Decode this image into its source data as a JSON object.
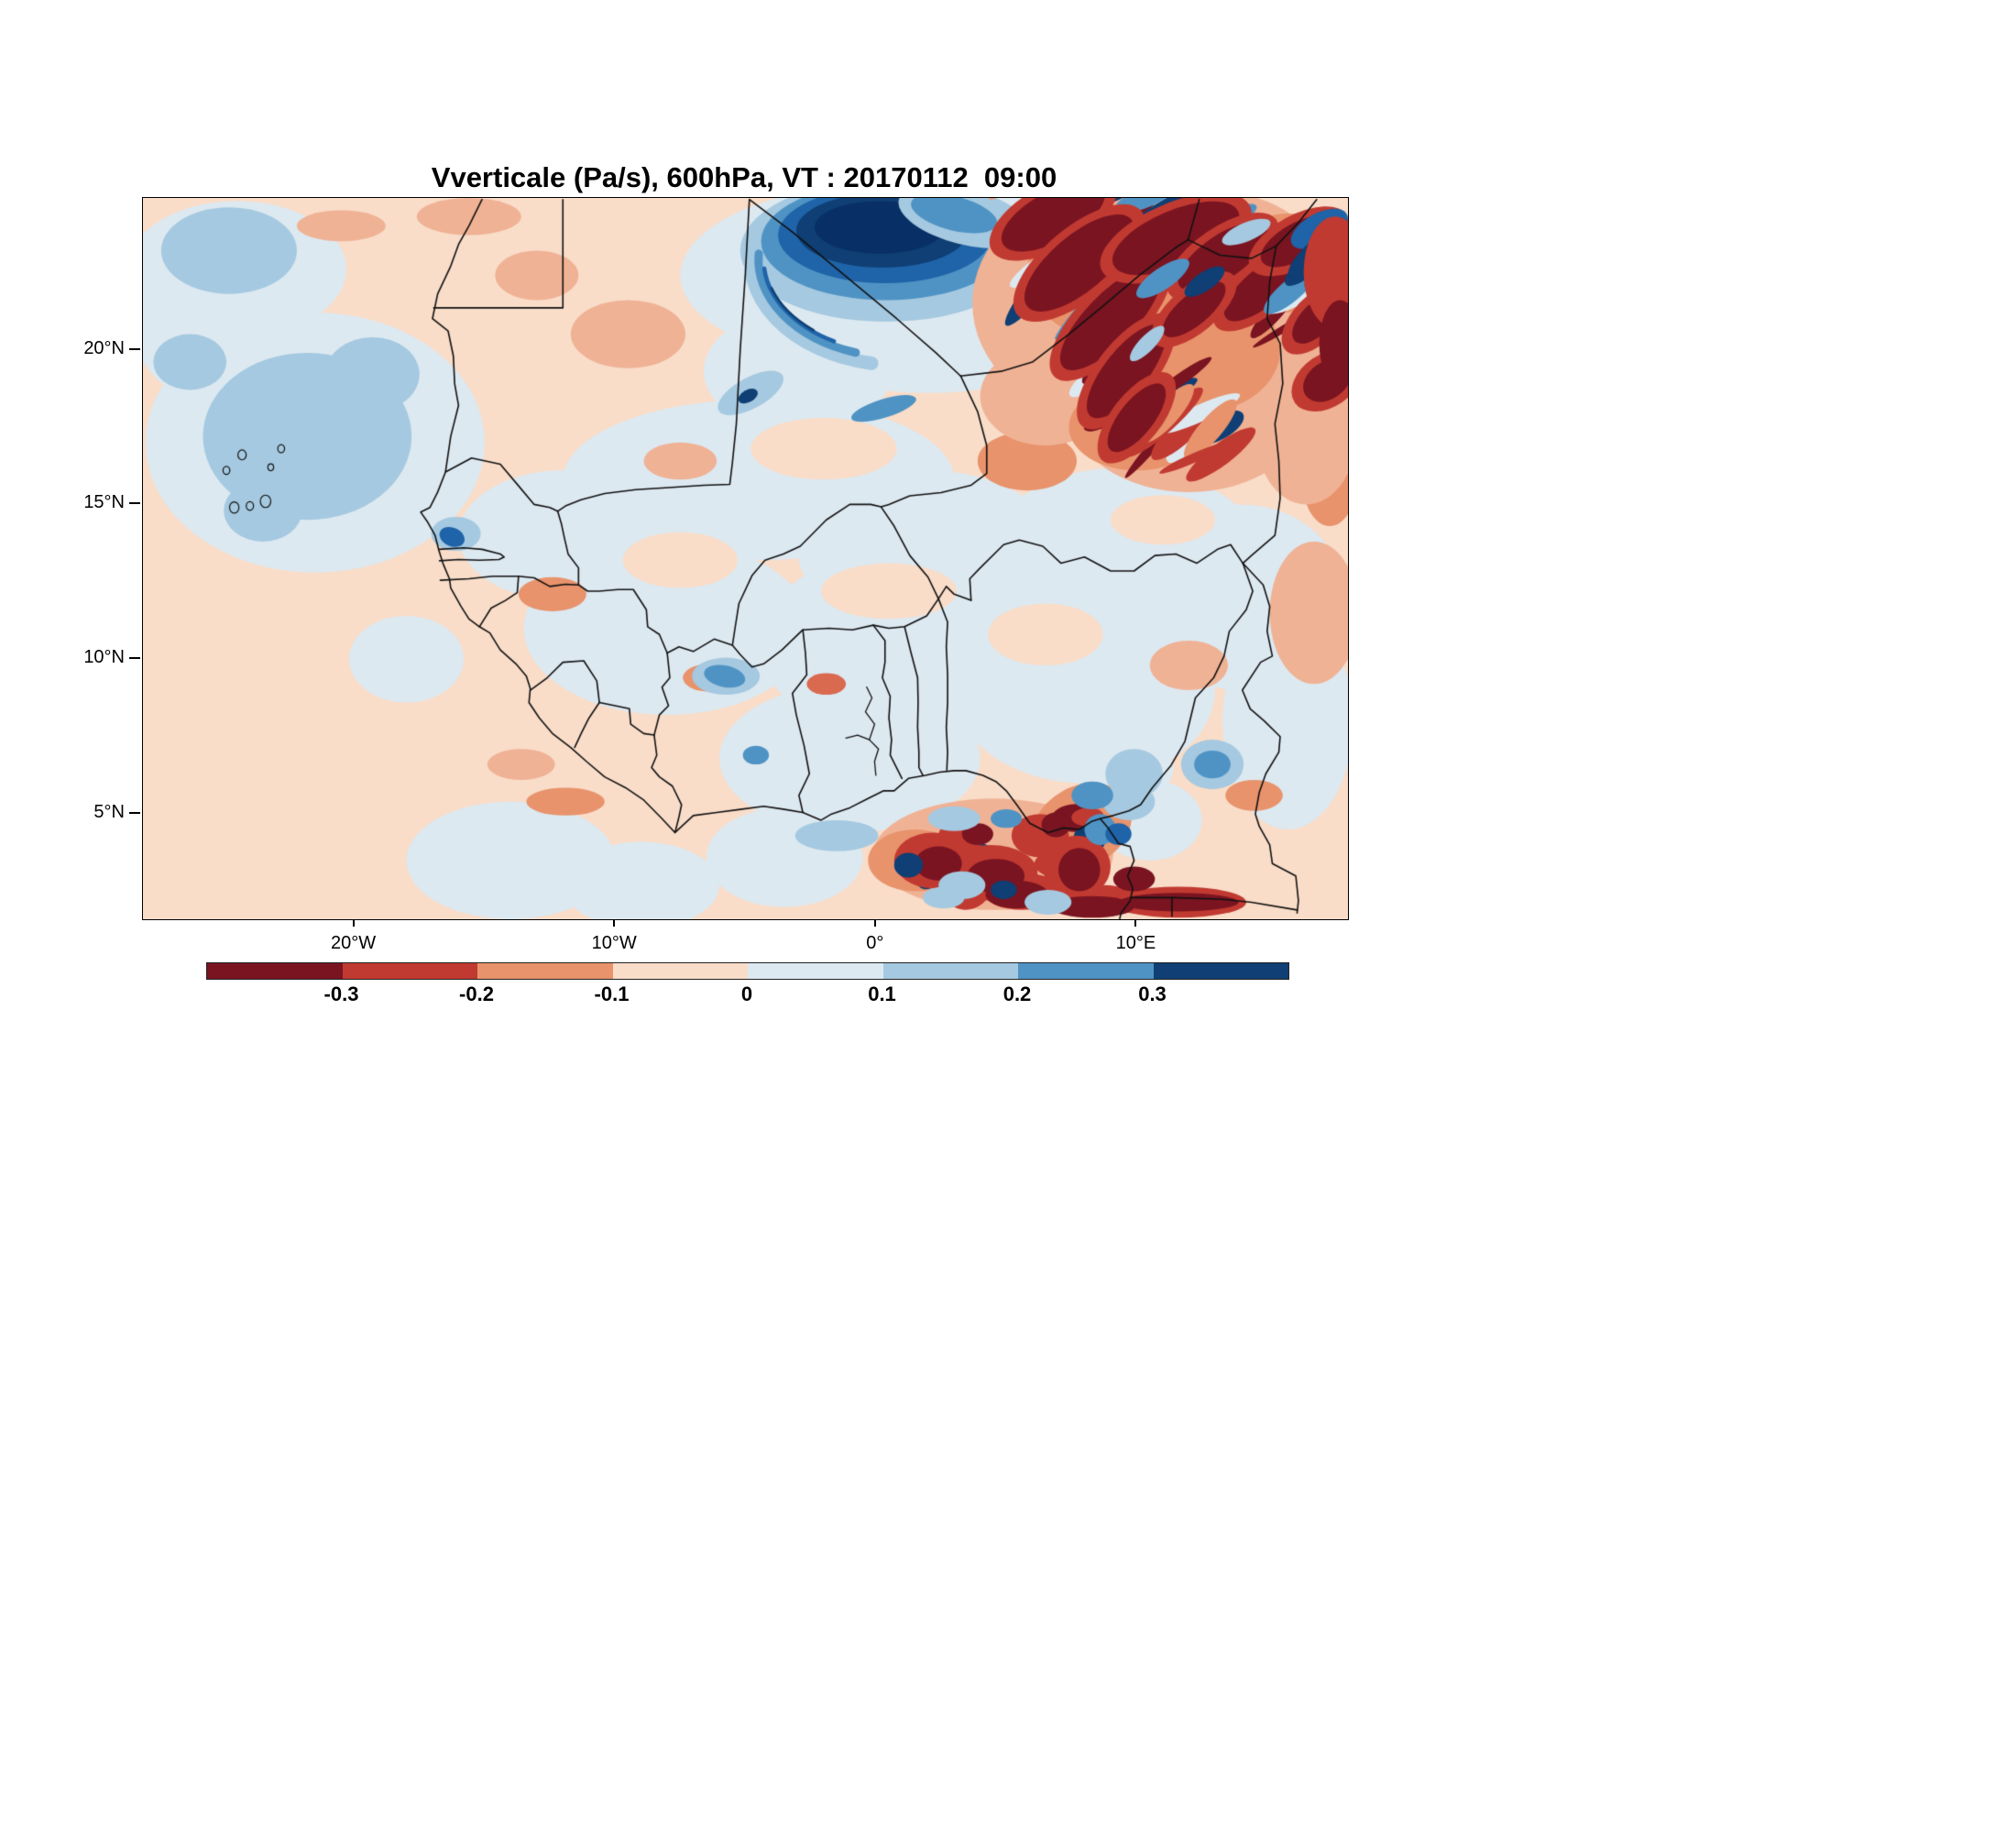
{
  "figure": {
    "title": "Vverticale (Pa/s), 600hPa, VT : 20170112  09:00"
  },
  "chart_data": {
    "type": "heatmap",
    "title": "Vverticale (Pa/s), 600hPa, VT : 20170112  09:00",
    "variable": "Vverticale",
    "units": "Pa/s",
    "pressure_level": "600hPa",
    "valid_time": "20170112 09:00",
    "projection": "lat-lon map of West Africa with country borders",
    "extent": {
      "lon_min": -28.1,
      "lon_max": 18.1,
      "lat_min": 1.6,
      "lat_max": 24.9
    },
    "x_ticks": [
      {
        "label": "20°W",
        "lon": -20
      },
      {
        "label": "10°W",
        "lon": -10
      },
      {
        "label": "0°",
        "lon": 0
      },
      {
        "label": "10°E",
        "lon": 10
      }
    ],
    "y_ticks": [
      {
        "label": "5°N",
        "lat": 5
      },
      {
        "label": "10°N",
        "lat": 10
      },
      {
        "label": "15°N",
        "lat": 15
      },
      {
        "label": "20°N",
        "lat": 20
      }
    ],
    "colorbar": {
      "orientation": "horizontal",
      "tick_labels": [
        "-0.3",
        "-0.2",
        "-0.1",
        "0",
        "0.1",
        "0.2",
        "0.3"
      ],
      "levels": [
        -0.3,
        -0.2,
        -0.1,
        0,
        0.1,
        0.2,
        0.3
      ],
      "colors": [
        "#7a1421",
        "#c13a31",
        "#e8936c",
        "#f9ddc9",
        "#dde9f1",
        "#a5c9e0",
        "#4f93c4",
        "#0f3f74"
      ]
    },
    "features": [
      "dominant weak ascent (pale red, -0.1 to 0 Pa/s) over the Atlantic and western half of the domain",
      "weak descent (pale blue, 0 to 0.1 Pa/s) over the central Sahel band and Gulf of Guinea hinterland",
      "strong descent core (dark blue, > 0.3 Pa/s) centered near 0°E, 23.5°N over northern Mali / southern Algeria",
      "curved descent band (blue arc) southwest of the core near 5°W-1°W, 18.5-21.5°N",
      "moderate descent patch (light blue, 0.1-0.2 Pa/s) over the Atlantic near 22°W, 16-19°N",
      "banded strong ascent/descent wave pattern (dark red streaks < -0.3 Pa/s with embedded blue cells) over the Air mountains and Niger-Chad region, 5°E-17°E, 16-25°N",
      "cluster of strong convective ascent cells (dark red < -0.3 Pa/s mixed with small dark blue descent cells) along the Gulf of Guinea coast, 0°E-10°E, 2-5.5°N",
      "narrow strong ascent band along the bottom edge near 10°E-14°E, 2°N",
      "Cape Verde islands outlined near 24°W, 15-17°N"
    ]
  }
}
